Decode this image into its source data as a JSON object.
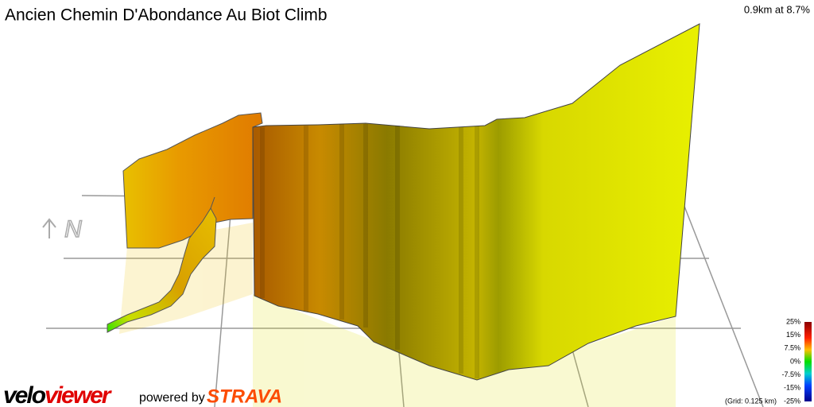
{
  "header": {
    "title": "Ancien Chemin D'Abondance Au Biot Climb",
    "stat": "0.9km at 8.7%"
  },
  "compass": "N",
  "legend": {
    "labels": [
      "25%",
      "15%",
      "7.5%",
      "0%",
      "-7.5%",
      "-15%",
      "-25%"
    ],
    "grid_note": "(Grid: 0.125 km)"
  },
  "footer": {
    "logo": [
      "velo",
      "viewer"
    ],
    "powered_by": "powered by",
    "brand": "STRAVA"
  }
}
